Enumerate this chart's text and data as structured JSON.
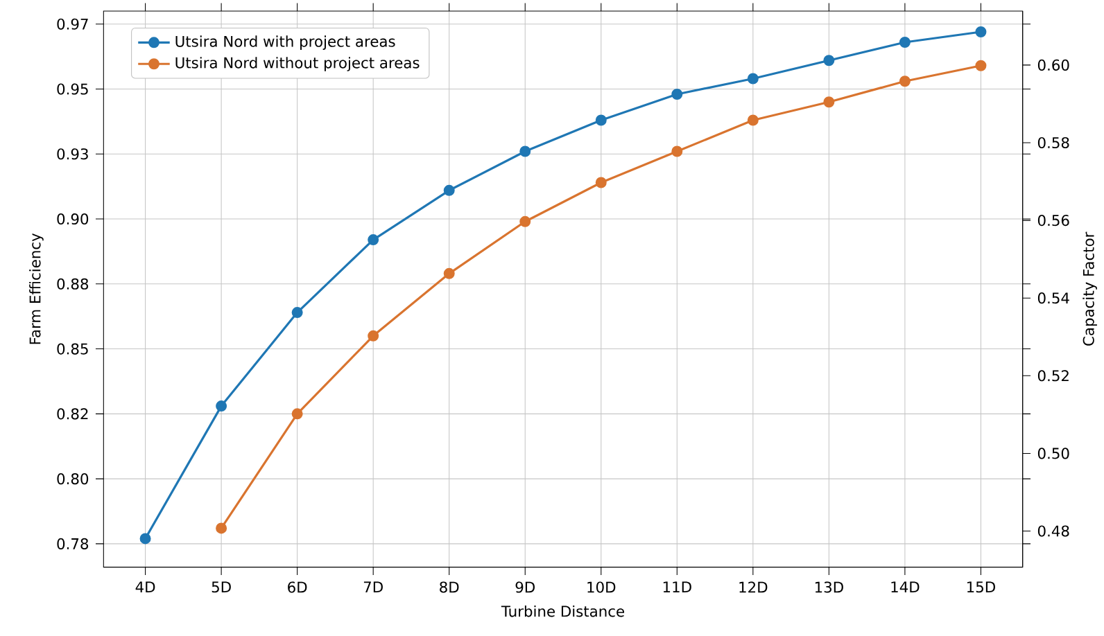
{
  "chart_data": {
    "type": "line",
    "xlabel": "Turbine Distance",
    "ylabel": "Farm Efficiency",
    "y2label": "Capacity Factor",
    "categories": [
      "4D",
      "5D",
      "6D",
      "7D",
      "8D",
      "9D",
      "10D",
      "11D",
      "12D",
      "13D",
      "14D",
      "15D"
    ],
    "series": [
      {
        "name": "Utsira Nord with project areas",
        "color": "#1f77b4",
        "values": [
          0.777,
          0.828,
          0.864,
          0.892,
          0.911,
          0.926,
          0.938,
          0.948,
          0.954,
          0.961,
          0.968,
          0.972
        ]
      },
      {
        "name": "Utsira Nord without project areas",
        "color": "#d9742f",
        "values": [
          null,
          0.781,
          0.825,
          0.855,
          0.879,
          0.899,
          0.914,
          0.926,
          0.938,
          0.945,
          0.953,
          0.959
        ]
      }
    ],
    "ylim": [
      0.766,
      0.98
    ],
    "yticks": [
      {
        "value": 0.775,
        "label": "0.78"
      },
      {
        "value": 0.8,
        "label": "0.80"
      },
      {
        "value": 0.825,
        "label": "0.82"
      },
      {
        "value": 0.85,
        "label": "0.85"
      },
      {
        "value": 0.875,
        "label": "0.88"
      },
      {
        "value": 0.9,
        "label": "0.90"
      },
      {
        "value": 0.925,
        "label": "0.93"
      },
      {
        "value": 0.95,
        "label": "0.95"
      },
      {
        "value": 0.975,
        "label": "0.97"
      }
    ],
    "y2lim": [
      0.4707,
      0.6139
    ],
    "y2ticks": [
      {
        "value": 0.48,
        "label": "0.48"
      },
      {
        "value": 0.5,
        "label": "0.50"
      },
      {
        "value": 0.52,
        "label": "0.52"
      },
      {
        "value": 0.54,
        "label": "0.54"
      },
      {
        "value": 0.56,
        "label": "0.56"
      },
      {
        "value": 0.58,
        "label": "0.58"
      },
      {
        "value": 0.6,
        "label": "0.60"
      }
    ],
    "grid": true,
    "legend": "top left",
    "marker": "circle",
    "line_style": "solid"
  }
}
